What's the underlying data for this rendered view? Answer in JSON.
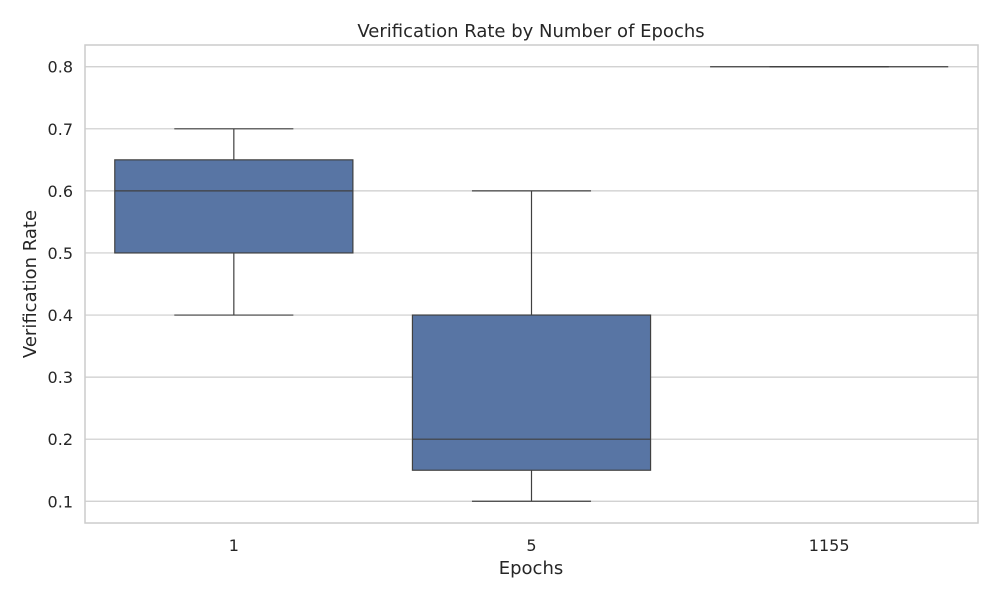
{
  "chart_data": {
    "type": "box",
    "title": "Verification Rate by Number of Epochs",
    "xlabel": "Epochs",
    "ylabel": "Verification Rate",
    "categories": [
      "1",
      "5",
      "1155"
    ],
    "boxes": [
      {
        "category": "1",
        "whislo": 0.4,
        "q1": 0.5,
        "median": 0.6,
        "q3": 0.65,
        "whishi": 0.7
      },
      {
        "category": "5",
        "whislo": 0.1,
        "q1": 0.15,
        "median": 0.2,
        "q3": 0.4,
        "whishi": 0.6
      },
      {
        "category": "1155",
        "whislo": 0.8,
        "q1": 0.8,
        "median": 0.8,
        "q3": 0.8,
        "whishi": 0.8
      }
    ],
    "yticks": [
      "0.1",
      "0.2",
      "0.3",
      "0.4",
      "0.5",
      "0.6",
      "0.7",
      "0.8"
    ],
    "ylim": [
      0.065,
      0.835
    ],
    "grid": "horizontal",
    "colors": {
      "box_fill": "#5875a4",
      "line": "#404040",
      "grid": "#cccccc"
    }
  }
}
